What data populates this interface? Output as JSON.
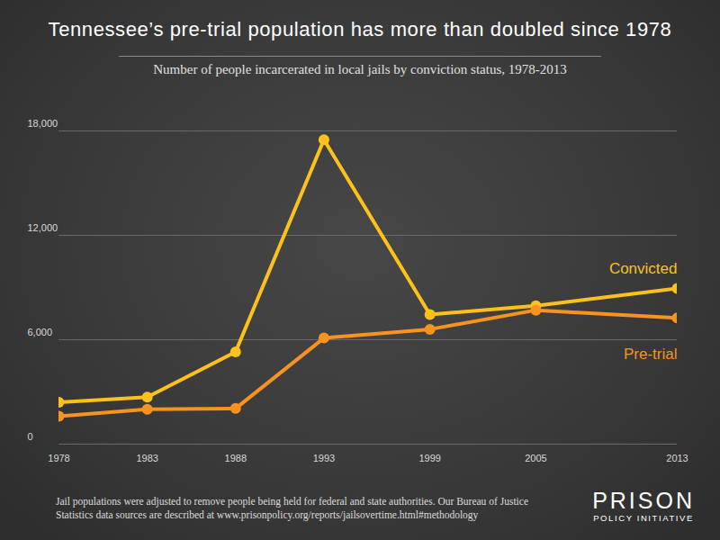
{
  "chart_data": {
    "type": "line",
    "title": "Tennessee’s pre-trial population has more than doubled since 1978",
    "subtitle": "Number of people incarcerated in local jails by conviction status, 1978-2013",
    "x": [
      1978,
      1983,
      1988,
      1993,
      1999,
      2005,
      2013
    ],
    "xlim": [
      1978,
      2013
    ],
    "xticks": [
      1978,
      1983,
      1988,
      1993,
      1999,
      2005,
      2013
    ],
    "ylim": [
      0,
      18000
    ],
    "yticks": [
      0,
      {
        "value": 6000,
        "label": "6,000"
      },
      {
        "value": 12000,
        "label": "12,000"
      },
      {
        "value": 18000,
        "label": "18,000"
      }
    ],
    "grid": true,
    "marker": "circle",
    "series": [
      {
        "name": "Convicted",
        "color": "#fcc21b",
        "values": [
          2400,
          2700,
          5300,
          17500,
          7450,
          7950,
          8950
        ]
      },
      {
        "name": "Pre-trial",
        "color": "#f7931e",
        "values": [
          1600,
          2000,
          2050,
          6100,
          6600,
          7700,
          7250
        ]
      }
    ],
    "caption": [
      "Jail populations were adjusted to remove people being held for federal and state authorities. Our Bureau of Justice",
      "Statistics data sources are described at www.prisonpolicy.org/reports/jailsovertime.html#methodology"
    ],
    "logo": [
      "PRISON",
      "POLICY INITIATIVE"
    ]
  }
}
